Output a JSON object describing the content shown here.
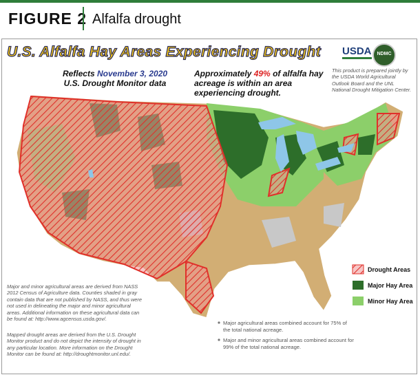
{
  "header": {
    "label": "FIGURE 2",
    "title": "Alfalfa drought"
  },
  "map": {
    "title": "U.S. Alfalfa Hay Areas Experiencing Drought",
    "date_prefix": "Reflects",
    "date": "November 3, 2020",
    "date_suffix": "U.S. Drought Monitor data",
    "summary": {
      "before": "Approximately",
      "percent": "49%",
      "after": "of alfalfa hay acreage is within an area experiencing drought."
    },
    "logos": [
      "USDA",
      "NDMC"
    ],
    "credit": "This product is prepared jointly by the USDA World Agricultural Outlook Board and the UNL National Drought Mitigation Center.",
    "legend": [
      "Drought Areas",
      "Major Hay Area",
      "Minor Hay Area"
    ],
    "notes": [
      "Major and minor agricultural areas are derived from NASS 2012 Census of Agriculture data. Counties shaded in gray contain data that are not published by NASS, and thus were not used in delineating the major and minor agricultural areas. Additional information on these agricultural data can be found at: http://www.agcensus.usda.gov/.",
      "Mapped drought areas are derived from the U.S. Drought Monitor product and do not depict the intensity of drought in any particular location. More information on the Drought Monitor can be found at: http://droughtmonitor.unl.edu/."
    ],
    "bullets": [
      "Major agricultural areas combined account for 75% of the total national acreage.",
      "Major and minor agricultural areas combined account for 99% of the total national acreage."
    ]
  }
}
